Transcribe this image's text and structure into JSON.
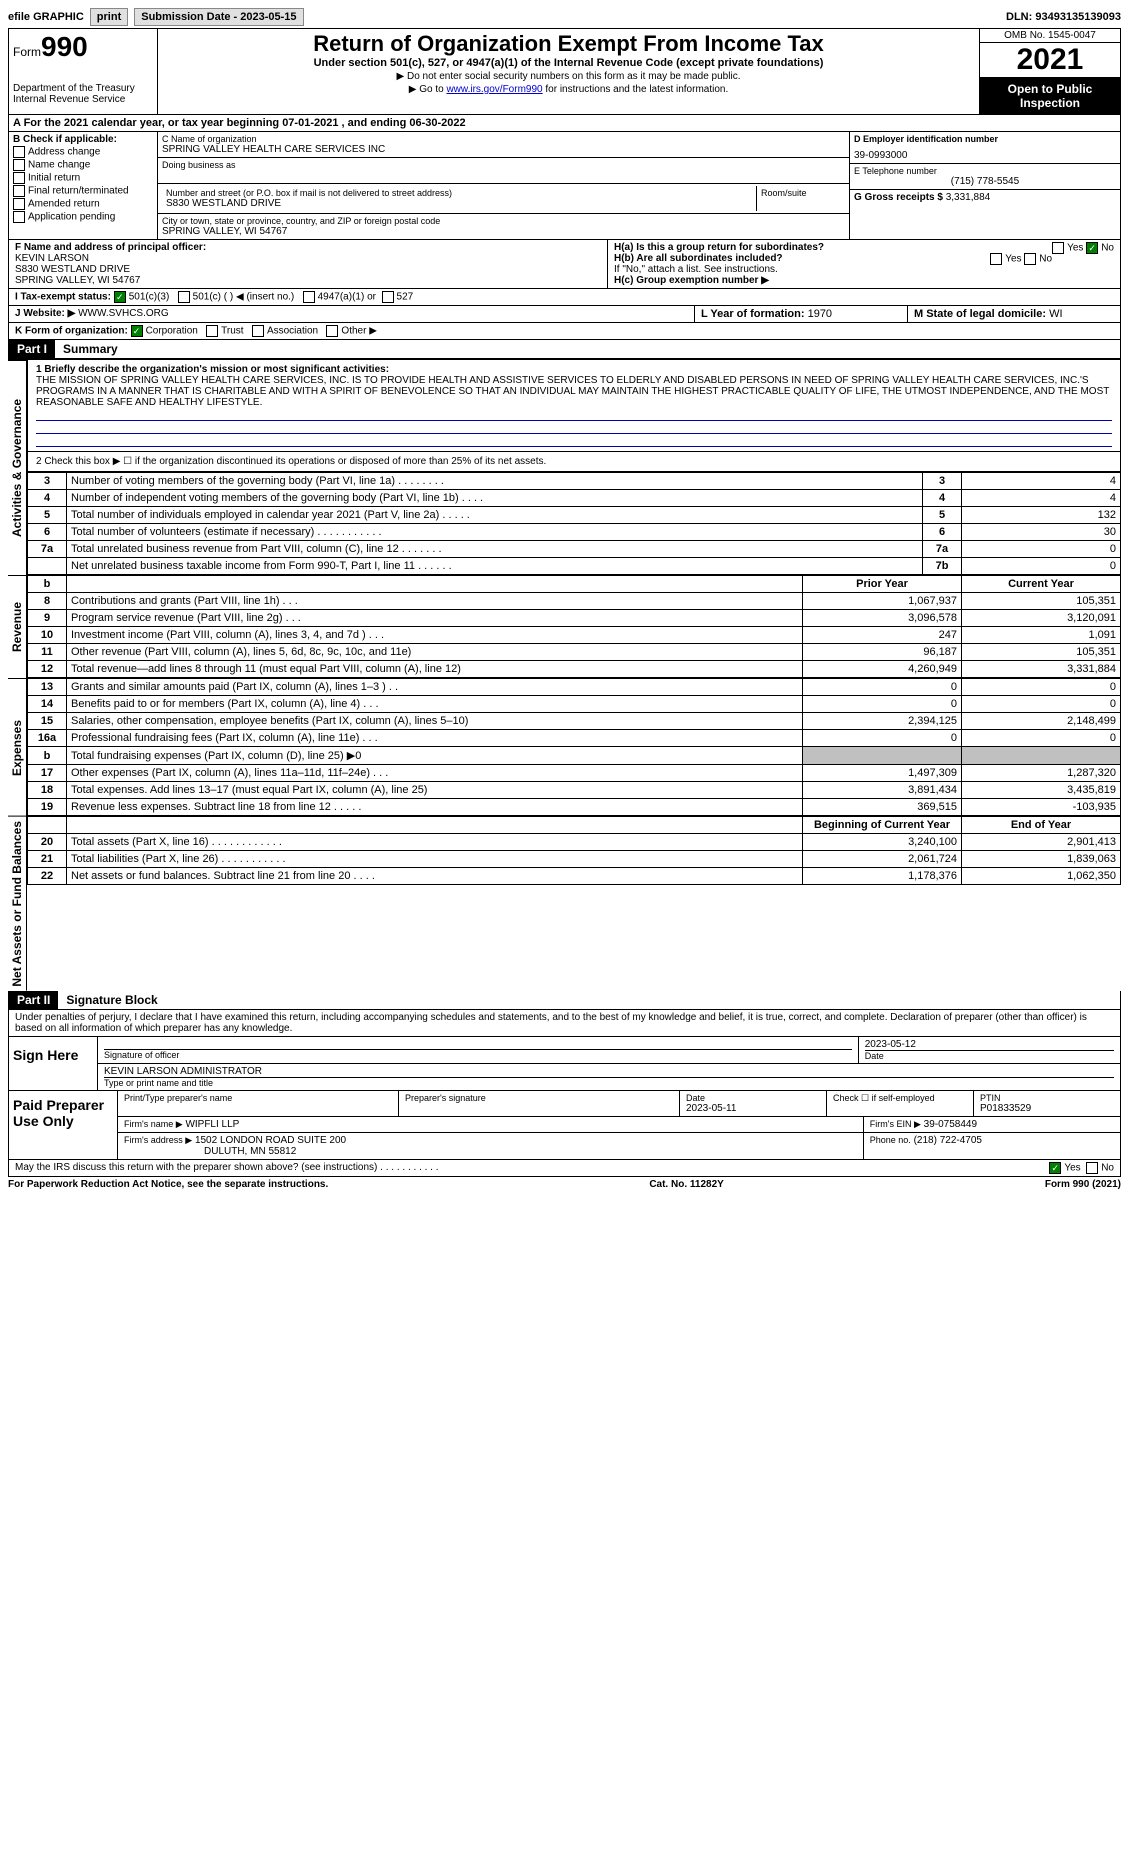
{
  "topbar": {
    "efile": "efile GRAPHIC",
    "print": "print",
    "submission_label": "Submission Date - 2023-05-15",
    "dln": "DLN: 93493135139093"
  },
  "header": {
    "form_word": "Form",
    "form_no": "990",
    "dept": "Department of the Treasury",
    "irs": "Internal Revenue Service",
    "title": "Return of Organization Exempt From Income Tax",
    "sub": "Under section 501(c), 527, or 4947(a)(1) of the Internal Revenue Code (except private foundations)",
    "note1": "▶ Do not enter social security numbers on this form as it may be made public.",
    "note2_pre": "▶ Go to ",
    "note2_link": "www.irs.gov/Form990",
    "note2_post": " for instructions and the latest information.",
    "omb": "OMB No. 1545-0047",
    "year": "2021",
    "open": "Open to Public Inspection"
  },
  "a": "A  For the 2021 calendar year, or tax year beginning 07-01-2021    , and ending 06-30-2022",
  "b": {
    "header": "B Check if applicable:",
    "items": [
      "Address change",
      "Name change",
      "Initial return",
      "Final return/terminated",
      "Amended return",
      "Application pending"
    ]
  },
  "c": {
    "name_lbl": "C Name of organization",
    "name": "SPRING VALLEY HEALTH CARE SERVICES INC",
    "dba_lbl": "Doing business as",
    "addr_lbl": "Number and street (or P.O. box if mail is not delivered to street address)",
    "addr": "S830 WESTLAND DRIVE",
    "room_lbl": "Room/suite",
    "city_lbl": "City or town, state or province, country, and ZIP or foreign postal code",
    "city": "SPRING VALLEY, WI  54767"
  },
  "d": {
    "lbl": "D Employer identification number",
    "val": "39-0993000"
  },
  "e": {
    "lbl": "E Telephone number",
    "val": "(715) 778-5545"
  },
  "g": {
    "lbl": "G Gross receipts $",
    "val": "3,331,884"
  },
  "f": {
    "lbl": "F  Name and address of principal officer:",
    "name": "KEVIN LARSON",
    "addr1": "S830 WESTLAND DRIVE",
    "addr2": "SPRING VALLEY, WI  54767"
  },
  "h": {
    "a": "H(a)  Is this a group return for subordinates?",
    "b": "H(b)  Are all subordinates included?",
    "note": "If \"No,\" attach a list. See instructions.",
    "c": "H(c)  Group exemption number ▶"
  },
  "i": {
    "lbl": "I    Tax-exempt status:",
    "o1": "501(c)(3)",
    "o2": "501(c) (  ) ◀ (insert no.)",
    "o3": "4947(a)(1) or",
    "o4": "527"
  },
  "j": {
    "lbl": "J   Website: ▶",
    "val": "WWW.SVHCS.ORG"
  },
  "k": {
    "lbl": "K Form of organization:",
    "o1": "Corporation",
    "o2": "Trust",
    "o3": "Association",
    "o4": "Other ▶"
  },
  "l": {
    "lbl": "L Year of formation:",
    "val": "1970"
  },
  "m": {
    "lbl": "M State of legal domicile:",
    "val": "WI"
  },
  "parts": {
    "p1": "Part I",
    "p1_title": "Summary",
    "p2": "Part II",
    "p2_title": "Signature Block"
  },
  "summary": {
    "q1": "1  Briefly describe the organization's mission or most significant activities:",
    "mission": "THE MISSION OF SPRING VALLEY HEALTH CARE SERVICES, INC. IS TO PROVIDE HEALTH AND ASSISTIVE SERVICES TO ELDERLY AND DISABLED PERSONS IN NEED OF SPRING VALLEY HEALTH CARE SERVICES, INC.'S PROGRAMS IN A MANNER THAT IS CHARITABLE AND WITH A SPIRIT OF BENEVOLENCE SO THAT AN INDIVIDUAL MAY MAINTAIN THE HIGHEST PRACTICABLE QUALITY OF LIFE, THE UTMOST INDEPENDENCE, AND THE MOST REASONABLE SAFE AND HEALTHY LIFESTYLE.",
    "q2": "2    Check this box ▶ ☐  if the organization discontinued its operations or disposed of more than 25% of its net assets.",
    "rows_gov": [
      {
        "n": "3",
        "d": "Number of voting members of the governing body (Part VI, line 1a)    .    .    .    .    .    .    .    .",
        "k": "3",
        "v": "4"
      },
      {
        "n": "4",
        "d": "Number of independent voting members of the governing body (Part VI, line 1b)    .    .    .    .",
        "k": "4",
        "v": "4"
      },
      {
        "n": "5",
        "d": "Total number of individuals employed in calendar year 2021 (Part V, line 2a)    .    .    .    .    .",
        "k": "5",
        "v": "132"
      },
      {
        "n": "6",
        "d": "Total number of volunteers (estimate if necessary)    .    .    .    .    .    .    .    .    .    .    .",
        "k": "6",
        "v": "30"
      },
      {
        "n": "7a",
        "d": "Total unrelated business revenue from Part VIII, column (C), line 12    .    .    .    .    .    .    .",
        "k": "7a",
        "v": "0"
      },
      {
        "n": "",
        "d": "Net unrelated business taxable income from Form 990-T, Part I, line 11    .    .    .    .    .    .",
        "k": "7b",
        "v": "0"
      }
    ],
    "hdr_b": "b",
    "hdr_prior": "Prior Year",
    "hdr_curr": "Current Year",
    "rows_rev": [
      {
        "n": "8",
        "d": "Contributions and grants (Part VIII, line 1h)    .    .    .",
        "p": "1,067,937",
        "c": "105,351"
      },
      {
        "n": "9",
        "d": "Program service revenue (Part VIII, line 2g)    .    .    .",
        "p": "3,096,578",
        "c": "3,120,091"
      },
      {
        "n": "10",
        "d": "Investment income (Part VIII, column (A), lines 3, 4, and 7d )    .    .    .",
        "p": "247",
        "c": "1,091"
      },
      {
        "n": "11",
        "d": "Other revenue (Part VIII, column (A), lines 5, 6d, 8c, 9c, 10c, and 11e)",
        "p": "96,187",
        "c": "105,351"
      },
      {
        "n": "12",
        "d": "Total revenue—add lines 8 through 11 (must equal Part VIII, column (A), line 12)",
        "p": "4,260,949",
        "c": "3,331,884"
      }
    ],
    "rows_exp": [
      {
        "n": "13",
        "d": "Grants and similar amounts paid (Part IX, column (A), lines 1–3 )  .    .",
        "p": "0",
        "c": "0"
      },
      {
        "n": "14",
        "d": "Benefits paid to or for members (Part IX, column (A), line 4)    .    .    .",
        "p": "0",
        "c": "0"
      },
      {
        "n": "15",
        "d": "Salaries, other compensation, employee benefits (Part IX, column (A), lines 5–10)",
        "p": "2,394,125",
        "c": "2,148,499"
      },
      {
        "n": "16a",
        "d": "Professional fundraising fees (Part IX, column (A), line 11e)    .    .    .",
        "p": "0",
        "c": "0"
      },
      {
        "n": "b",
        "d": "Total fundraising expenses (Part IX, column (D), line 25) ▶0",
        "p": "",
        "c": "",
        "gray": true
      },
      {
        "n": "17",
        "d": "Other expenses (Part IX, column (A), lines 11a–11d, 11f–24e)    .    .    .",
        "p": "1,497,309",
        "c": "1,287,320"
      },
      {
        "n": "18",
        "d": "Total expenses. Add lines 13–17 (must equal Part IX, column (A), line 25)",
        "p": "3,891,434",
        "c": "3,435,819"
      },
      {
        "n": "19",
        "d": "Revenue less expenses. Subtract line 18 from line 12    .    .    .    .    .",
        "p": "369,515",
        "c": "-103,935"
      }
    ],
    "hdr_boy": "Beginning of Current Year",
    "hdr_eoy": "End of Year",
    "rows_net": [
      {
        "n": "20",
        "d": "Total assets (Part X, line 16)    .    .    .    .    .    .    .    .    .    .    .    .",
        "p": "3,240,100",
        "c": "2,901,413"
      },
      {
        "n": "21",
        "d": "Total liabilities (Part X, line 26)   .    .    .    .    .    .    .    .    .    .    .",
        "p": "2,061,724",
        "c": "1,839,063"
      },
      {
        "n": "22",
        "d": "Net assets or fund balances. Subtract line 21 from line 20    .    .    .    .",
        "p": "1,178,376",
        "c": "1,062,350"
      }
    ],
    "vlabels": {
      "gov": "Activities & Governance",
      "rev": "Revenue",
      "exp": "Expenses",
      "net": "Net Assets or Fund Balances"
    }
  },
  "sig": {
    "perjury": "Under penalties of perjury, I declare that I have examined this return, including accompanying schedules and statements, and to the best of my knowledge and belief, it is true, correct, and complete. Declaration of preparer (other than officer) is based on all information of which preparer has any knowledge.",
    "sign_here": "Sign Here",
    "sig_officer": "Signature of officer",
    "date": "2023-05-12",
    "date_lbl": "Date",
    "name": "KEVIN LARSON  ADMINISTRATOR",
    "name_lbl": "Type or print name and title"
  },
  "paid": {
    "title": "Paid Preparer Use Only",
    "h1": "Print/Type preparer's name",
    "h2": "Preparer's signature",
    "h3": "Date",
    "h3v": "2023-05-11",
    "h4": "Check ☐ if self-employed",
    "h5": "PTIN",
    "h5v": "P01833529",
    "firm_lbl": "Firm's name   ▶",
    "firm": "WIPFLI LLP",
    "ein_lbl": "Firm's EIN ▶",
    "ein": "39-0758449",
    "addr_lbl": "Firm's address ▶",
    "addr1": "1502 LONDON ROAD SUITE 200",
    "addr2": "DULUTH, MN  55812",
    "phone_lbl": "Phone no.",
    "phone": "(218) 722-4705"
  },
  "discuss": "May the IRS discuss this return with the preparer shown above? (see instructions)  .    .    .    .    .    .    .    .    .    .    .",
  "yes": "Yes",
  "no": "No",
  "footer": {
    "left": "For Paperwork Reduction Act Notice, see the separate instructions.",
    "mid": "Cat. No. 11282Y",
    "right_pre": "Form ",
    "right_form": "990",
    "right_post": " (2021)"
  }
}
